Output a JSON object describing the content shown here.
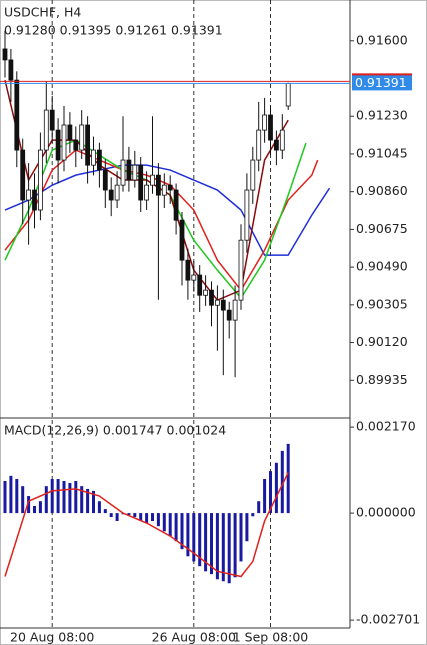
{
  "chart_data": [
    {
      "type": "candlestick",
      "title": "USDCHF, H4",
      "subtitle": "0.91280 0.91395 0.91261 0.91391",
      "categories": [
        null,
        null,
        null,
        null,
        null,
        null,
        null,
        null,
        "20 Aug 08:00",
        null,
        null,
        null,
        null,
        null,
        null,
        null,
        null,
        null,
        null,
        null,
        null,
        null,
        null,
        null,
        null,
        null,
        null,
        null,
        null,
        null,
        null,
        null,
        "26 Aug 08:00",
        null,
        null,
        null,
        null,
        null,
        null,
        null,
        null,
        null,
        null,
        null,
        null,
        "1 Sep 08:00",
        null,
        null,
        null,
        null,
        null,
        null,
        null,
        null,
        null,
        null
      ],
      "open": [
        0.9156,
        0.91506,
        0.91407,
        0.91064,
        0.90819,
        0.90868,
        0.9077,
        0.91064,
        0.9126,
        0.91162,
        0.91015,
        0.91187,
        0.91113,
        0.91064,
        0.91187,
        0.9099,
        0.91064,
        0.90966,
        0.90868,
        0.90819,
        0.90892,
        0.91015,
        0.90917,
        0.9099,
        0.90819,
        0.90892,
        0.90941,
        0.90843,
        0.90892,
        0.90868,
        0.9072,
        0.90524,
        0.90426,
        0.90451,
        0.90352,
        0.90377,
        0.90303,
        0.90328,
        0.90279,
        0.9023,
        0.90328,
        0.90622,
        0.90868,
        0.91015,
        0.91162,
        0.91236,
        0.91113,
        0.91064,
        0.9128,
        null,
        null,
        null,
        null,
        null,
        null,
        null
      ],
      "high": [
        0.9165,
        0.9156,
        0.9145,
        0.9112,
        0.91,
        0.9095,
        0.9115,
        0.914,
        0.9133,
        0.9122,
        0.9128,
        0.9125,
        0.9118,
        0.9126,
        0.9123,
        0.9113,
        0.911,
        0.9102,
        0.9093,
        0.9096,
        0.9123,
        0.9108,
        0.9106,
        0.9103,
        0.9096,
        0.9123,
        0.91,
        0.9095,
        0.9094,
        0.909,
        0.9076,
        0.9058,
        0.9052,
        0.905,
        0.9045,
        0.9042,
        0.904,
        0.9038,
        0.9032,
        0.904,
        0.907,
        0.9095,
        0.9108,
        0.913,
        0.9132,
        0.9128,
        0.9116,
        0.9124,
        0.91395,
        null,
        null,
        null,
        null,
        null,
        null,
        null
      ],
      "low": [
        0.9142,
        0.913,
        0.9098,
        0.907,
        0.906,
        0.9068,
        0.9072,
        0.91,
        0.911,
        0.909,
        0.9096,
        0.9105,
        0.9098,
        0.9102,
        0.909,
        0.9094,
        0.9088,
        0.9078,
        0.9074,
        0.9078,
        0.9086,
        0.9086,
        0.9088,
        0.9076,
        0.9077,
        0.9085,
        0.9033,
        0.9078,
        0.908,
        0.9065,
        0.904,
        0.9033,
        0.9037,
        0.9027,
        0.903,
        0.902,
        0.9008,
        0.8996,
        0.9014,
        0.8995,
        0.9028,
        0.9056,
        0.908,
        0.9096,
        0.911,
        0.9104,
        0.9099,
        0.9102,
        0.91261,
        null,
        null,
        null,
        null,
        null,
        null,
        null
      ],
      "close": [
        0.91506,
        0.91407,
        0.91064,
        0.90819,
        0.90868,
        0.9077,
        0.91064,
        0.9126,
        0.91162,
        0.91015,
        0.91187,
        0.91113,
        0.91064,
        0.91187,
        0.9099,
        0.91064,
        0.90966,
        0.90868,
        0.90819,
        0.90892,
        0.91015,
        0.90917,
        0.9099,
        0.90819,
        0.90892,
        0.90941,
        0.90843,
        0.90892,
        0.90868,
        0.9072,
        0.90524,
        0.90426,
        0.90451,
        0.90352,
        0.90377,
        0.90303,
        0.90328,
        0.90279,
        0.9023,
        0.90328,
        0.90622,
        0.90868,
        0.91015,
        0.91162,
        0.91236,
        0.91113,
        0.91064,
        0.91162,
        0.91391,
        null,
        null,
        null,
        null,
        null,
        null,
        null
      ],
      "up_color": "#ffffff",
      "down_color": "#111111",
      "overlays": [
        {
          "color": "#1f2fd8",
          "x": [
            0,
            4,
            8,
            12,
            16,
            20,
            24,
            28,
            32,
            36,
            40,
            44,
            48,
            52,
            55
          ],
          "values": [
            0.9077,
            0.90819,
            0.90892,
            0.90941,
            0.90966,
            0.9099,
            0.9099,
            0.90966,
            0.90917,
            0.90868,
            0.9077,
            0.90549,
            0.90549,
            0.90745,
            0.90877
          ]
        },
        {
          "color": "#e0201c",
          "x": [
            0,
            4,
            8,
            12,
            16,
            20,
            24,
            28,
            32,
            36,
            40,
            44,
            48,
            52,
            53
          ],
          "values": [
            0.90573,
            0.9072,
            0.90966,
            0.91064,
            0.91015,
            0.90966,
            0.90941,
            0.90892,
            0.9077,
            0.90524,
            0.90377,
            0.90573,
            0.90819,
            0.90941,
            0.91015
          ]
        },
        {
          "color": "#1ec81e",
          "x": [
            0,
            4,
            8,
            12,
            16,
            20,
            24,
            28,
            32,
            36,
            40,
            44,
            48,
            51
          ],
          "values": [
            0.90524,
            0.9077,
            0.91064,
            0.91113,
            0.91039,
            0.90966,
            0.90917,
            0.90843,
            0.90622,
            0.90475,
            0.90338,
            0.90524,
            0.90843,
            0.91098
          ]
        },
        {
          "color": "#8b0a0a",
          "x": [
            0,
            4,
            8,
            12,
            16,
            20,
            24,
            28,
            32,
            36,
            40,
            44,
            48
          ],
          "values": [
            0.91407,
            0.90917,
            0.91113,
            0.91113,
            0.9099,
            0.90917,
            0.90917,
            0.90843,
            0.90475,
            0.90328,
            0.90377,
            0.91015,
            0.91211
          ]
        }
      ],
      "ask": 0.91401,
      "ask_color": "#e0201c",
      "bid": 0.91391,
      "bid_color": "#2f8ae8",
      "ylim": [
        0.8975,
        0.918
      ],
      "yticks": [
        {
          "value": 0.916,
          "label": "0.91600"
        },
        {
          "value": 0.9123,
          "label": "0.91230"
        },
        0.91045,
        {
          "value": 0.9086,
          "label": "0.90860"
        },
        0.90675,
        {
          "value": 0.9049,
          "label": "0.90490"
        },
        0.90305,
        {
          "value": 0.9012,
          "label": "0.90120"
        },
        0.89935
      ],
      "grid": false
    },
    {
      "type": "macd",
      "title": "MACD(12,26,9) 0.001747 0.001024",
      "values": [
        0.00081,
        0.00094,
        0.00086,
        0.00068,
        0.00043,
        0.00018,
        0.0003,
        0.00068,
        0.00086,
        0.00086,
        0.00081,
        0.00076,
        0.00081,
        0.00068,
        0.00061,
        0.00056,
        0.0003,
        0.0001,
        -0.0001,
        -0.0002,
        -3e-05,
        -5e-05,
        -0.0001,
        -0.0002,
        -0.00025,
        -0.0002,
        -0.00033,
        -0.00046,
        -0.00058,
        -0.00071,
        -0.00091,
        -0.00109,
        -0.00122,
        -0.00134,
        -0.00147,
        -0.00154,
        -0.00167,
        -0.00172,
        -0.00177,
        -0.00162,
        -0.00122,
        -0.00071,
        -8e-05,
        0.0003,
        0.00086,
        0.00106,
        0.00127,
        0.00157,
        0.001747
      ],
      "color": "#1a1aa0",
      "signal": {
        "color": "#e0201c",
        "x": [
          0,
          4,
          8,
          12,
          16,
          20,
          24,
          28,
          32,
          36,
          40,
          42,
          44,
          48
        ],
        "values": [
          -0.0016,
          0.0003,
          0.00056,
          0.00061,
          0.00043,
          0,
          -0.00025,
          -0.00058,
          -0.00101,
          -0.00147,
          -0.0016,
          -0.00122,
          -0.0002,
          0.001024
        ]
      },
      "ylim": [
        -0.0029,
        0.0024
      ],
      "yticks": [
        {
          "value": 0.00217,
          "label": "0.002170"
        },
        {
          "value": 0,
          "label": "0.000000"
        },
        -0.002701
      ]
    }
  ]
}
